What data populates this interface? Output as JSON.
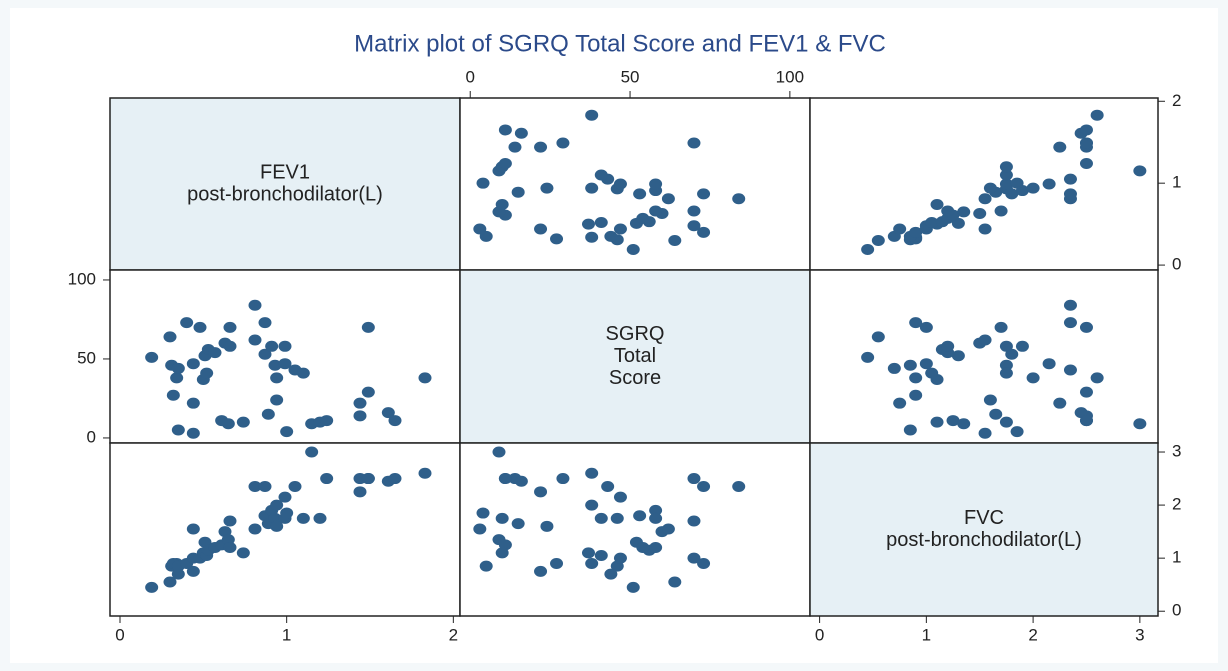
{
  "chart_data": {
    "type": "scatter-matrix",
    "title": "Matrix plot of SGRQ Total Score and FEV1 & FVC",
    "color": "#2f5f8a",
    "diagonal_color": "#e6f0f5",
    "variables": [
      {
        "label": [
          "FEV1",
          "post-bronchodilator(L)"
        ],
        "lim": [
          -0.06,
          2.04
        ],
        "ticks": [
          0,
          1,
          2
        ],
        "values": [
          0.19,
          0.3,
          0.31,
          0.34,
          0.35,
          0.32,
          0.35,
          0.4,
          0.44,
          0.44,
          0.44,
          0.48,
          0.5,
          0.51,
          0.52,
          0.53,
          0.57,
          0.61,
          0.63,
          0.65,
          0.66,
          0.66,
          0.74,
          0.81,
          0.81,
          0.87,
          0.87,
          0.89,
          0.91,
          0.93,
          0.94,
          0.94,
          0.99,
          0.99,
          1.0,
          1.05,
          1.1,
          1.15,
          1.2,
          1.24,
          1.49,
          1.44,
          1.44,
          1.49,
          1.61,
          1.65,
          1.83
        ]
      },
      {
        "label": [
          "SGRQ",
          "Total",
          "Score"
        ],
        "lim": [
          -3.2,
          106.3
        ],
        "ticks": [
          0,
          50,
          100
        ],
        "values": [
          51,
          64,
          46,
          38,
          44,
          27,
          5,
          73,
          47,
          22,
          3,
          70,
          37,
          52,
          41,
          56,
          54,
          11,
          60,
          9,
          70,
          58,
          10,
          84,
          62,
          73,
          53,
          15,
          58,
          46,
          38,
          24,
          58,
          47,
          4,
          43,
          41,
          9,
          10,
          11,
          70,
          22,
          14,
          29,
          16,
          11,
          38
        ]
      },
      {
        "label": [
          "FVC",
          "post-bronchodilator(L)"
        ],
        "lim": [
          -0.09,
          3.17
        ],
        "ticks": [
          0,
          1,
          2,
          3
        ],
        "values": [
          0.45,
          0.55,
          0.85,
          0.9,
          0.7,
          0.9,
          0.85,
          0.9,
          1.0,
          0.75,
          1.55,
          1.0,
          1.1,
          1.3,
          1.05,
          1.15,
          1.2,
          1.25,
          1.5,
          1.35,
          1.7,
          1.2,
          1.1,
          2.35,
          1.55,
          2.35,
          1.8,
          1.65,
          1.9,
          1.75,
          2.0,
          1.6,
          1.75,
          2.15,
          1.85,
          2.35,
          1.75,
          3.0,
          1.75,
          2.5,
          2.5,
          2.25,
          2.5,
          2.5,
          2.45,
          2.5,
          2.6
        ]
      }
    ]
  }
}
